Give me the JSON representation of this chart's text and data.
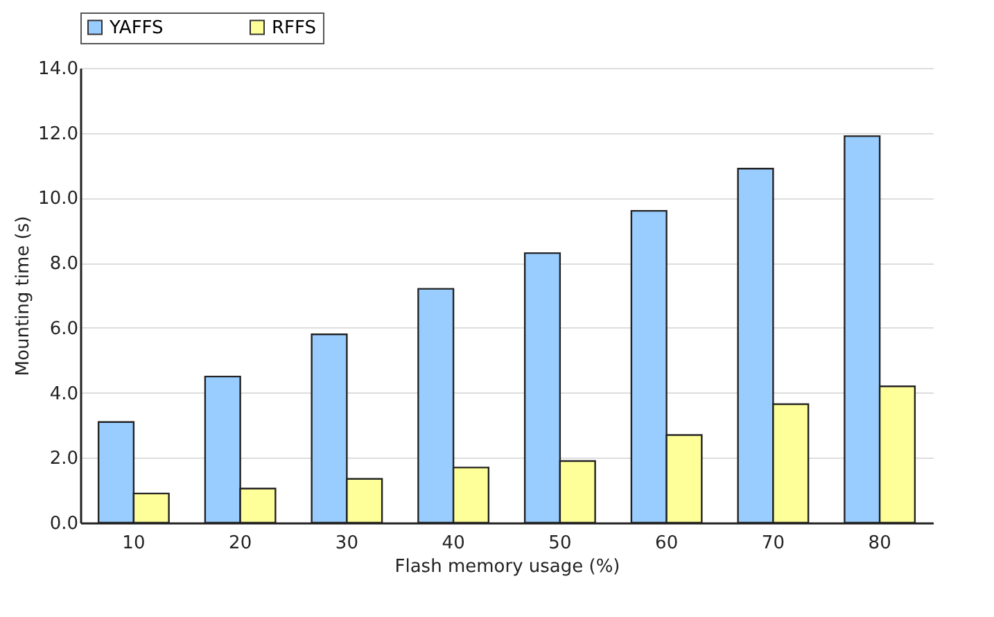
{
  "chart_data": {
    "type": "bar",
    "xlabel": "Flash memory usage (%)",
    "ylabel": "Mounting time (s)",
    "categories": [
      "10",
      "20",
      "30",
      "40",
      "50",
      "60",
      "70",
      "80"
    ],
    "series": [
      {
        "name": "YAFFS",
        "color": "#99ccff",
        "values": [
          3.1,
          4.5,
          5.8,
          7.2,
          8.3,
          9.6,
          10.9,
          11.9
        ]
      },
      {
        "name": "RFFS",
        "color": "#ffff99",
        "values": [
          0.9,
          1.05,
          1.35,
          1.7,
          1.9,
          2.7,
          3.65,
          4.2
        ]
      }
    ],
    "ylim": [
      0,
      14
    ],
    "yticks": [
      {
        "value": 0,
        "label": "0.0"
      },
      {
        "value": 2,
        "label": "2.0"
      },
      {
        "value": 4,
        "label": "4.0"
      },
      {
        "value": 6,
        "label": "6.0"
      },
      {
        "value": 8,
        "label": "8.0"
      },
      {
        "value": 10,
        "label": "10.0"
      },
      {
        "value": 12,
        "label": "12.0"
      },
      {
        "value": 14,
        "label": "14.0"
      }
    ],
    "grid": "y",
    "legend": "top"
  }
}
